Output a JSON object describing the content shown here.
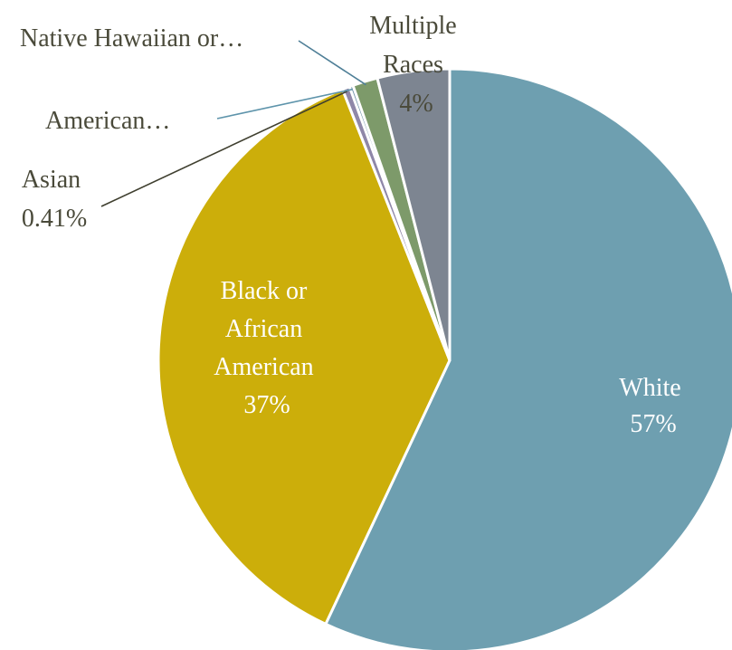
{
  "chart_data": {
    "type": "pie",
    "title": "",
    "legend": "none",
    "start_angle_deg": 0,
    "direction": "clockwise",
    "slices": [
      {
        "name": "White",
        "value": 57,
        "label_lines": [
          "White"
        ],
        "pct_text": "57%",
        "color": "#6e9fb0",
        "label_color": "#ffffff"
      },
      {
        "name": "Black or African American",
        "value": 37,
        "label_lines": [
          "Black or",
          "African",
          "American"
        ],
        "pct_text": "37%",
        "color": "#ccae0a",
        "label_color": "#ffffff"
      },
      {
        "name": "Asian",
        "value": 0.41,
        "label_lines": [
          "Asian"
        ],
        "pct_text": "0.41%",
        "color": "#8f87a8",
        "label_color": "#4a4a3a"
      },
      {
        "name": "American…",
        "value": 0.2,
        "label_lines": [
          "American…"
        ],
        "pct_text": "",
        "color": "#6b8fa6",
        "label_color": "#4a4a3a"
      },
      {
        "name": "Native Hawaiian or…",
        "value": 1.39,
        "label_lines": [
          "Native Hawaiian or…"
        ],
        "pct_text": "",
        "color": "#7d9a6a",
        "label_color": "#4a4a3a"
      },
      {
        "name": "Multiple Races",
        "value": 4,
        "label_lines": [
          "Multiple",
          "Races"
        ],
        "pct_text": "4%",
        "color": "#7d8591",
        "label_color": "#4a4a3a"
      }
    ]
  }
}
